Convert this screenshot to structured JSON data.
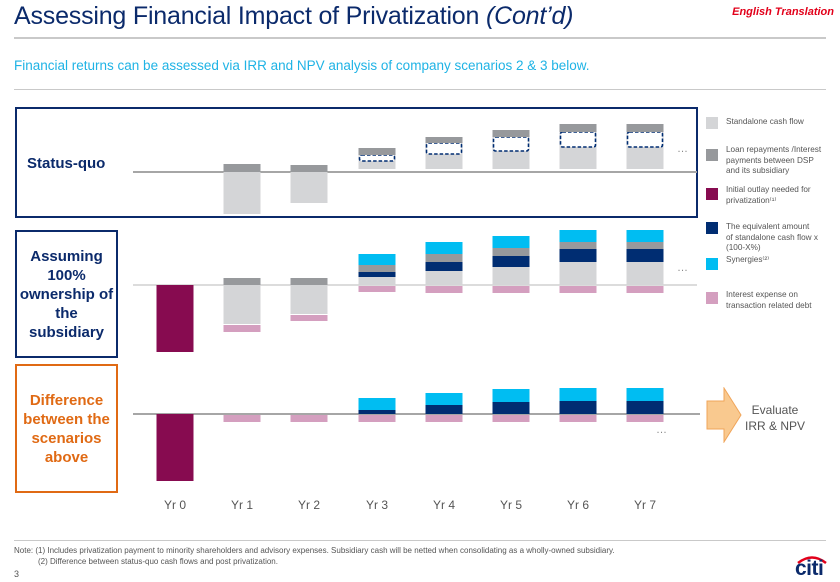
{
  "header": {
    "title_main": "Assessing Financial Impact of Privatization ",
    "title_italic": "(Cont’d)",
    "badge": "English Translation",
    "subtitle": "Financial returns can be assessed via IRR and NPV analysis of company scenarios 2 & 3 below."
  },
  "rows": {
    "status_quo": "Status-quo",
    "assuming_lines": [
      "Assuming",
      "100%",
      "ownership of",
      "the",
      "subsidiary"
    ],
    "difference_lines": [
      "Difference",
      "between the",
      "scenarios",
      "above"
    ]
  },
  "legend": [
    {
      "key": "standalone",
      "color": "#d4d5d7",
      "lines": [
        "Standalone  cash flow"
      ]
    },
    {
      "key": "loan",
      "color": "#97999c",
      "lines": [
        "Loan repayments /Interest",
        "payments between DSP",
        "and its subsidiary"
      ]
    },
    {
      "key": "outlay",
      "color": "#870b50",
      "lines": [
        "Initial outlay needed for",
        "privatization⁽¹⁾"
      ]
    },
    {
      "key": "equivalent",
      "color": "#002d72",
      "lines": [
        "The equivalent  amount",
        "of standalone cash flow x",
        "(100-X%)"
      ]
    },
    {
      "key": "synergies",
      "color": "#00bdf2",
      "lines": [
        "Synergies⁽²⁾"
      ]
    },
    {
      "key": "interest",
      "color": "#d49fbf",
      "lines": [
        "Interest expense on",
        "transaction related debt"
      ]
    }
  ],
  "evaluate": {
    "line1": "Evaluate",
    "line2": "IRR & NPV"
  },
  "ellipsis": "…",
  "footer": {
    "note1": "Note: (1) Includes privatization payment to minority shareholders and advisory expenses. Subsidiary cash will be netted when consolidating as a wholly-owned  subsidiary.",
    "note2": "(2) Difference between status-quo cash flows and post privatization.",
    "page": "3",
    "logo": "citi"
  },
  "chart_data": {
    "type": "bar",
    "subtype": "stacked-waterfall-illustrative",
    "title": "Assessing Financial Impact of Privatization (Cont’d)",
    "xlabel": "",
    "ylabel": "",
    "categories": [
      "Yr 0",
      "Yr 1",
      "Yr 2",
      "Yr 3",
      "Yr 4",
      "Yr 5",
      "Yr 6",
      "Yr 7"
    ],
    "units": "illustrative relative units (no axis scale shown)",
    "legend_position": "right",
    "panels": [
      {
        "name": "Status-quo",
        "series": [
          {
            "name": "Standalone cash flow",
            "key": "standalone",
            "values": [
              0,
              -4.2,
              -3.1,
              0.8,
              1.5,
              1.8,
              2.2,
              2.2
            ]
          },
          {
            "name": "Loan repayments /Interest payments between DSP and its subsidiary",
            "key": "loan",
            "values": [
              0,
              0.8,
              0.7,
              0.7,
              0.6,
              0.7,
              0.8,
              0.8
            ]
          },
          {
            "name": "The equivalent amount of standalone cash flow x (100-X%) (dashed outline)",
            "key": "equivalent_dashed",
            "values": [
              0,
              0,
              0,
              0.6,
              1.1,
              1.4,
              1.5,
              1.5
            ]
          }
        ]
      },
      {
        "name": "Assuming 100% ownership of the subsidiary",
        "series": [
          {
            "name": "Initial outlay needed for privatization",
            "key": "outlay",
            "values": [
              -6.7,
              0,
              0,
              0,
              0,
              0,
              0,
              0
            ]
          },
          {
            "name": "Standalone cash flow",
            "key": "standalone",
            "values": [
              0,
              -3.9,
              -2.9,
              0.8,
              1.4,
              1.8,
              2.3,
              2.3
            ]
          },
          {
            "name": "The equivalent amount of standalone cash flow x (100-X%)",
            "key": "equivalent",
            "values": [
              0,
              0,
              0,
              0.5,
              0.9,
              1.1,
              1.3,
              1.3
            ]
          },
          {
            "name": "Loan repayments /Interest payments between DSP and its subsidiary",
            "key": "loan",
            "values": [
              0,
              0.7,
              0.7,
              0.7,
              0.8,
              0.8,
              0.7,
              0.7
            ]
          },
          {
            "name": "Synergies",
            "key": "synergies",
            "values": [
              0,
              0,
              0,
              1.1,
              1.2,
              1.2,
              1.2,
              1.2
            ]
          },
          {
            "name": "Interest expense on transaction related debt",
            "key": "interest",
            "values": [
              0,
              -0.7,
              -0.6,
              -0.6,
              -0.7,
              -0.7,
              -0.7,
              -0.7
            ]
          }
        ]
      },
      {
        "name": "Difference between the scenarios above",
        "series": [
          {
            "name": "Initial outlay needed for privatization",
            "key": "outlay",
            "values": [
              -6.7,
              0,
              0,
              0,
              0,
              0,
              0,
              0
            ]
          },
          {
            "name": "The equivalent amount of standalone cash flow x (100-X%)",
            "key": "equivalent",
            "values": [
              0,
              0,
              0,
              0.4,
              0.9,
              1.2,
              1.3,
              1.3
            ]
          },
          {
            "name": "Synergies",
            "key": "synergies",
            "values": [
              0,
              0,
              0,
              1.2,
              1.2,
              1.3,
              1.3,
              1.3
            ]
          },
          {
            "name": "Interest expense on transaction related debt",
            "key": "interest",
            "values": [
              0,
              -0.7,
              -0.7,
              -0.7,
              -0.7,
              -0.7,
              -0.7,
              -0.7
            ]
          }
        ]
      }
    ],
    "annotation": "Evaluate IRR & NPV"
  }
}
